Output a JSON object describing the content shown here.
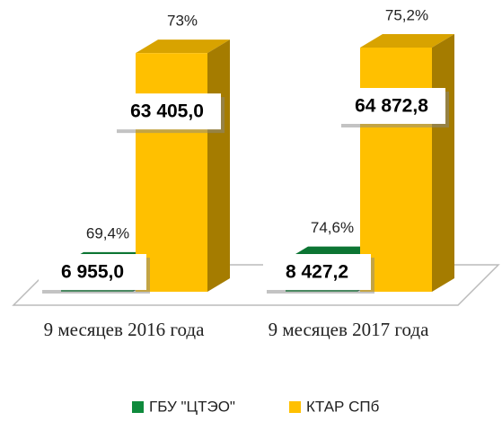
{
  "chart_data": {
    "type": "bar3d",
    "categories": [
      "9 месяцев 2016 года",
      "9 месяцев 2017 года"
    ],
    "series": [
      {
        "name": "ГБУ \"ЦТЭО\"",
        "color": "#0f8a3c",
        "values": [
          6955.0,
          8427.2
        ],
        "value_labels": [
          "6 955,0",
          "8 427,2"
        ],
        "annotations": [
          "69,4%",
          "74,6%"
        ]
      },
      {
        "name": "КТАР СПб",
        "color": "#ffc000",
        "values": [
          63405.0,
          64872.8
        ],
        "value_labels": [
          "63 405,0",
          "64 872,8"
        ],
        "annotations": [
          "73%",
          "75,2%"
        ]
      }
    ],
    "legend": "bottom"
  }
}
